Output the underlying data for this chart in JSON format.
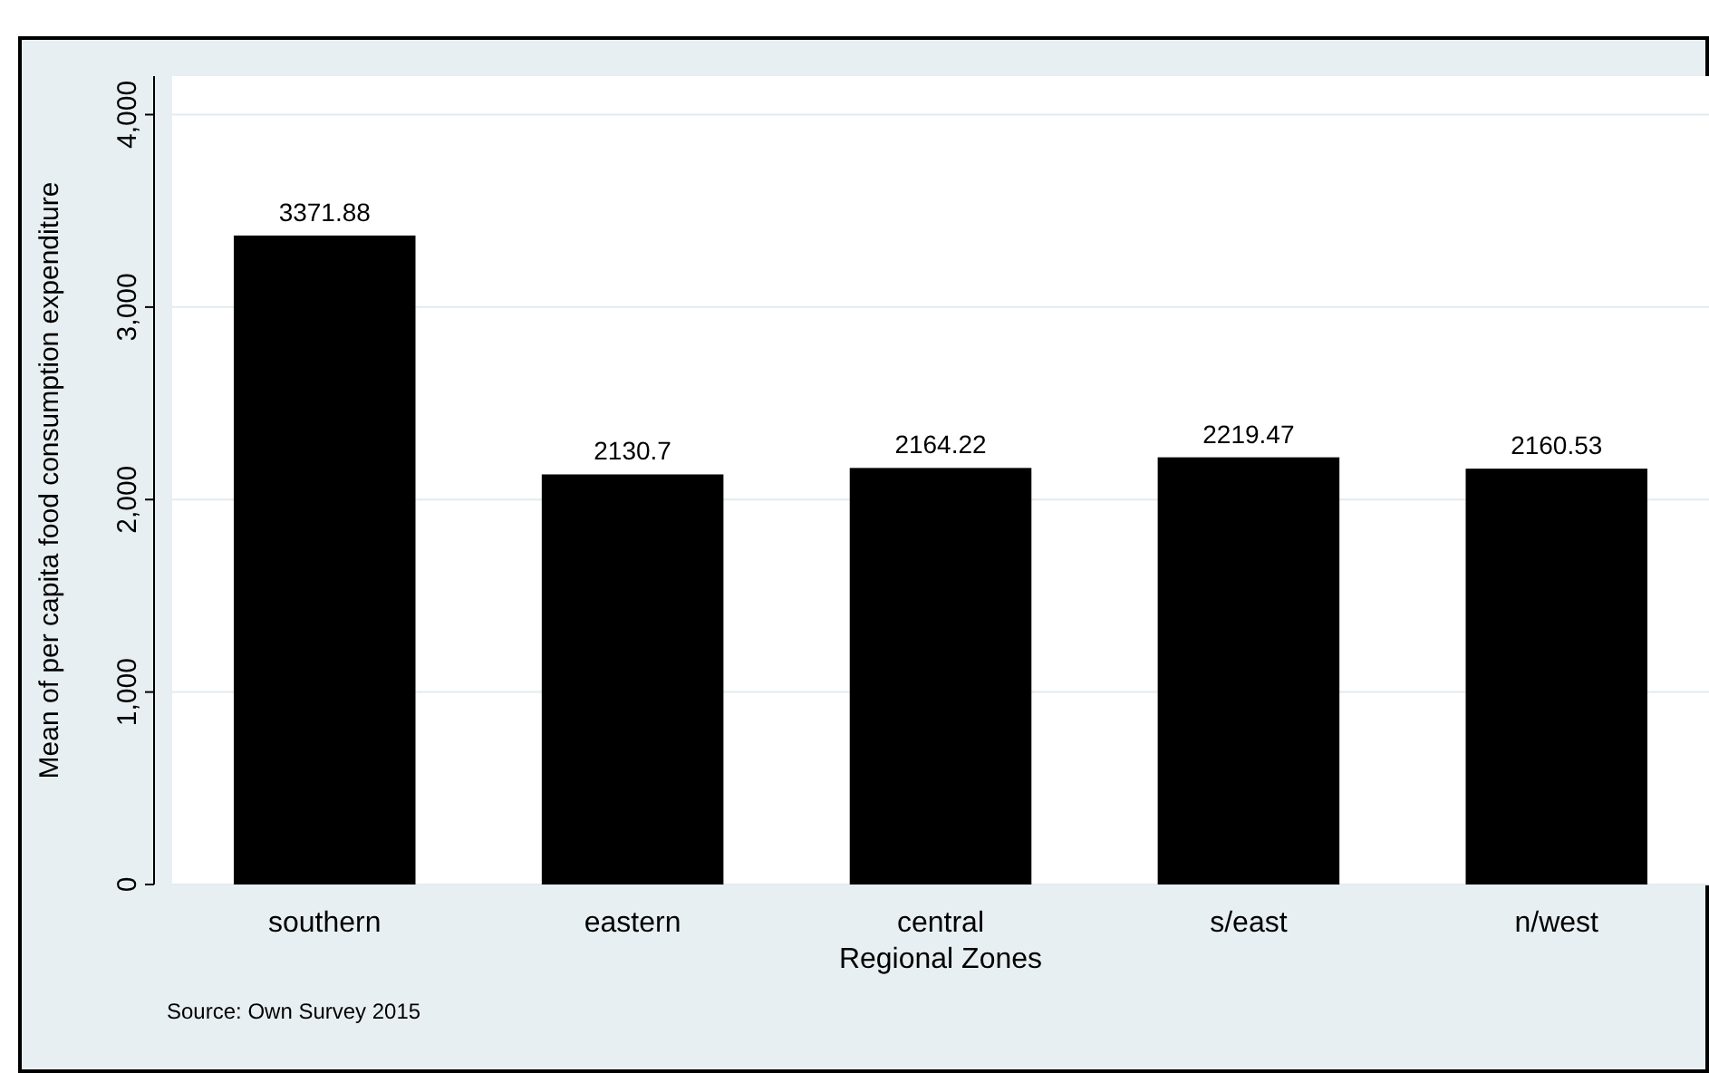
{
  "chart_data": {
    "type": "bar",
    "xlabel": "Regional Zones",
    "ylabel": "Mean of per capita food consumption expenditure",
    "categories": [
      "southern",
      "eastern",
      "central",
      "s/east",
      "n/west"
    ],
    "values": [
      3371.88,
      2130.7,
      2164.22,
      2219.47,
      2160.53
    ],
    "color": "#000000",
    "data_labels": true,
    "ylim": [
      0,
      4200
    ],
    "yticks": [
      0,
      {
        "value": 1000,
        "label": "1,000"
      },
      {
        "value": 2000,
        "label": "2,000"
      },
      {
        "value": 3000,
        "label": "3,000"
      },
      {
        "value": 4000,
        "label": "4,000"
      }
    ],
    "grid": "y",
    "annotations": [
      "Source: Own Survey 2015"
    ]
  }
}
